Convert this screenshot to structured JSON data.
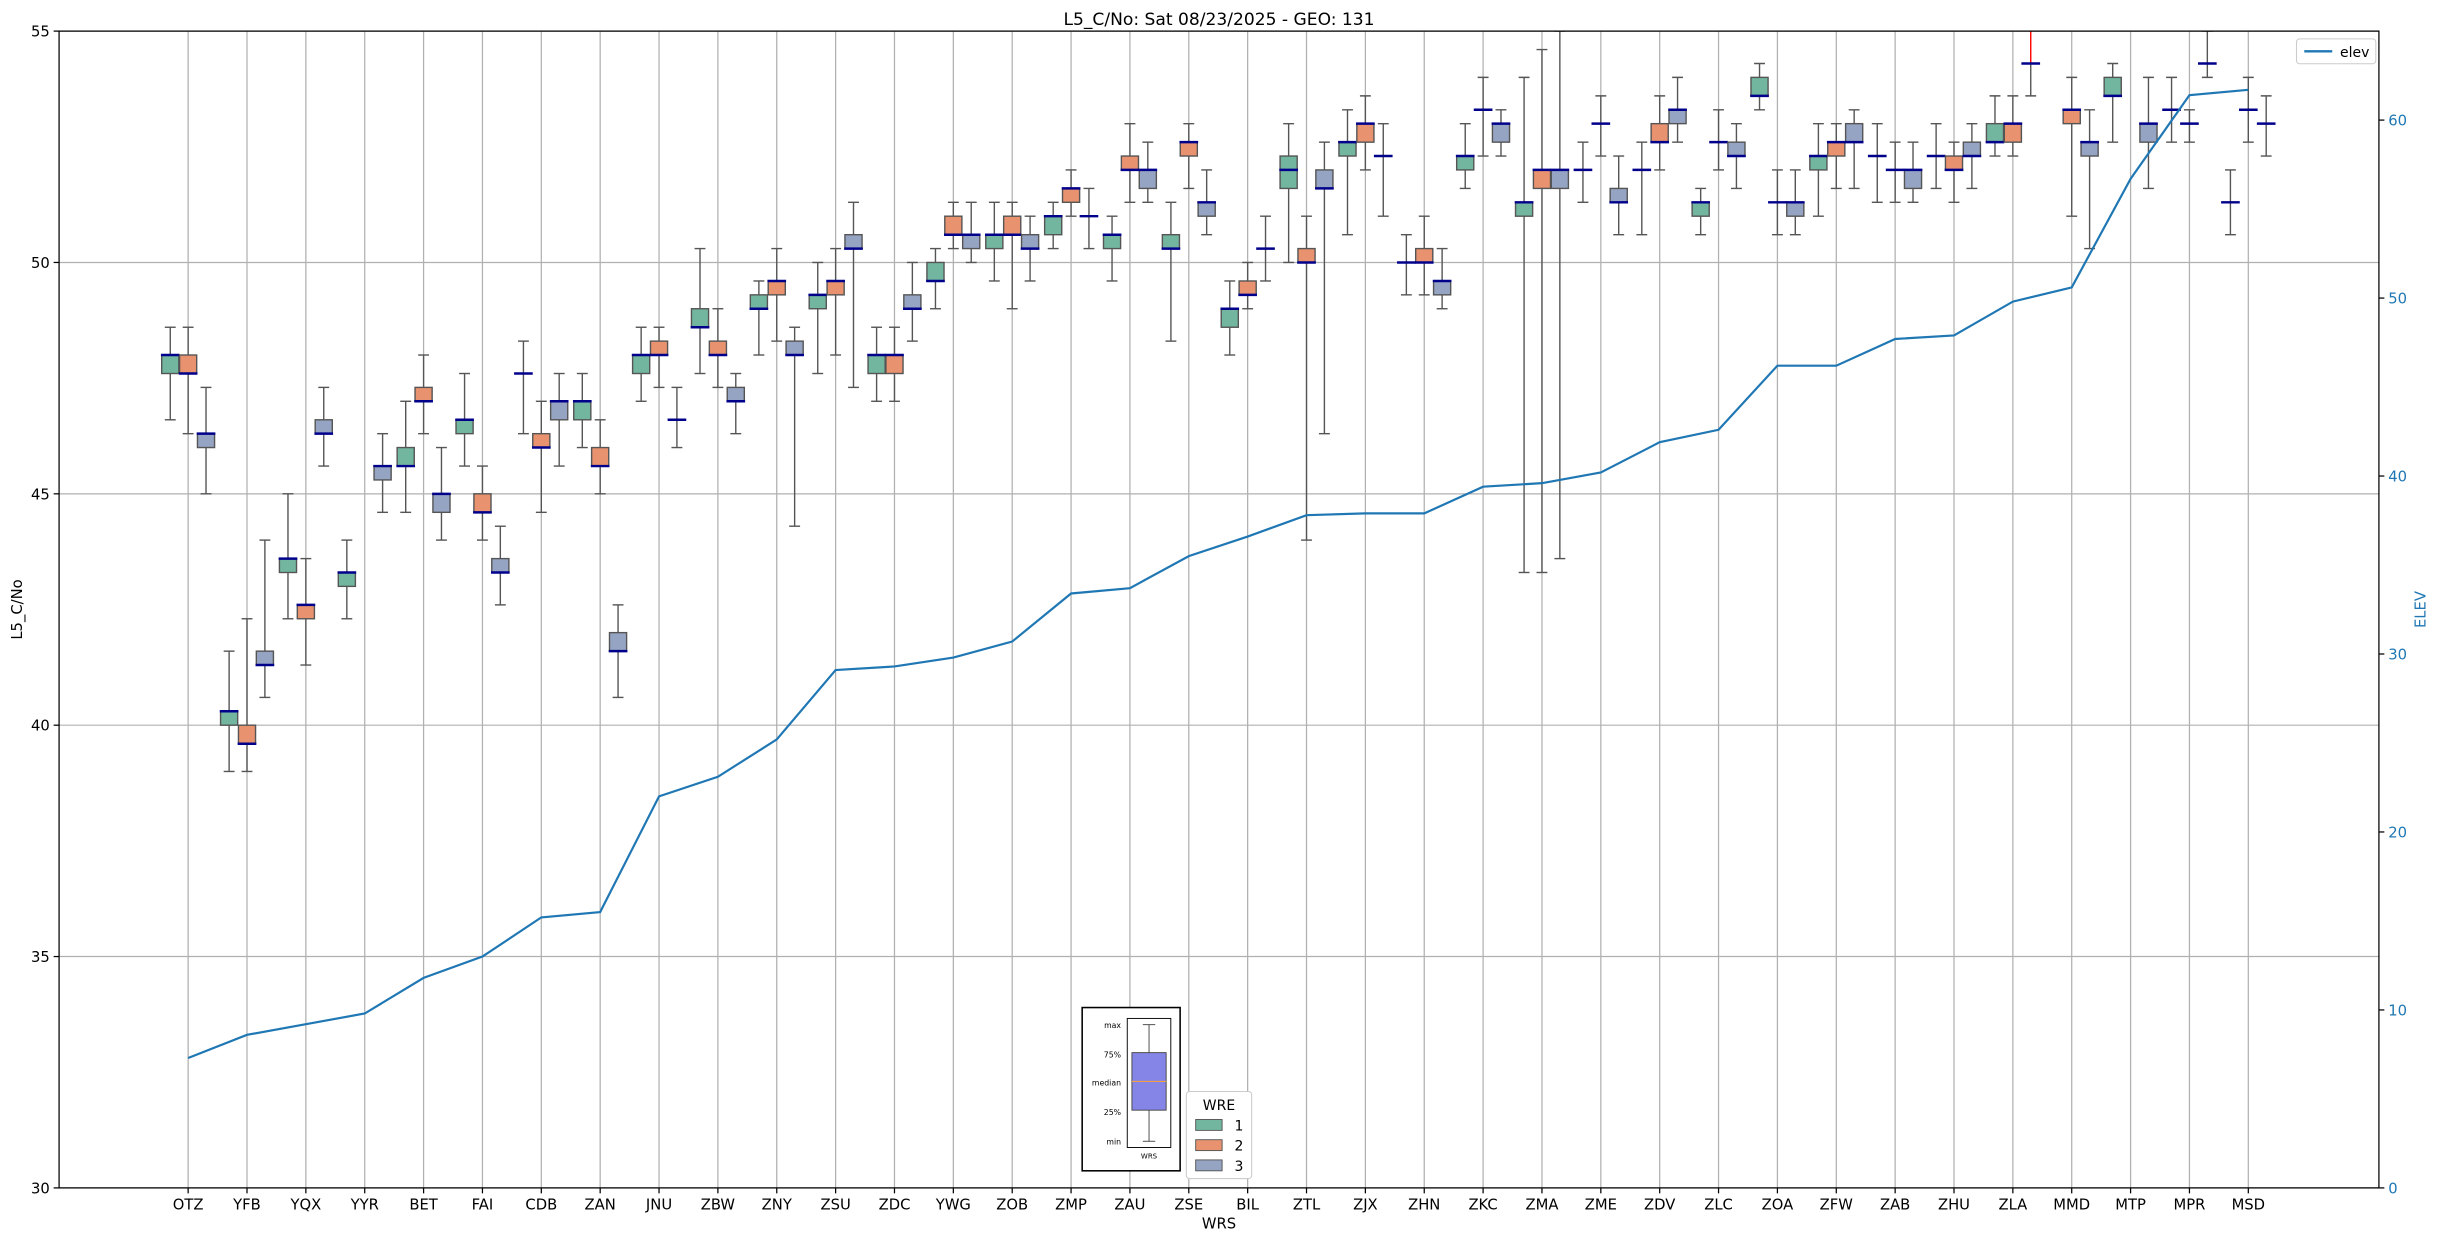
{
  "chart_data": {
    "type": "boxplot+line",
    "title": "L5_C/No: Sat 08/23/2025 - GEO: 131",
    "xlabel": "WRS",
    "ylabel": "L5_C/No",
    "ylabel_right": "ELEV",
    "ylim": [
      30,
      55
    ],
    "ylim_right": [
      0,
      65
    ],
    "yticks": [
      30,
      35,
      40,
      45,
      50,
      55
    ],
    "yticks_right": [
      0,
      10,
      20,
      30,
      40,
      50,
      60
    ],
    "grid": true,
    "categories": [
      "OTZ",
      "YFB",
      "YQX",
      "YYR",
      "BET",
      "FAI",
      "CDB",
      "ZAN",
      "JNU",
      "ZBW",
      "ZNY",
      "ZSU",
      "ZDC",
      "YWG",
      "ZOB",
      "ZMP",
      "ZAU",
      "ZSE",
      "BIL",
      "ZTL",
      "ZJX",
      "ZHN",
      "ZKC",
      "ZMA",
      "ZME",
      "ZDV",
      "ZLC",
      "ZOA",
      "ZFW",
      "ZAB",
      "ZHU",
      "ZLA",
      "MMD",
      "MTP",
      "MPR",
      "MSD"
    ],
    "box_stat_order": [
      "min",
      "q1",
      "median",
      "q3",
      "max"
    ],
    "series": [
      {
        "name": "1",
        "color": "#72b6a0",
        "boxes": [
          [
            46.6,
            47.6,
            48.0,
            48.0,
            48.6
          ],
          [
            39.0,
            40.0,
            40.3,
            40.3,
            41.6
          ],
          [
            42.3,
            43.3,
            43.6,
            43.6,
            45.0
          ],
          [
            42.3,
            43.0,
            43.3,
            43.3,
            44.0
          ],
          [
            44.6,
            45.6,
            45.6,
            46.0,
            47.0
          ],
          [
            45.6,
            46.3,
            46.6,
            46.6,
            47.6
          ],
          [
            46.3,
            47.6,
            47.6,
            47.6,
            48.3
          ],
          [
            46.0,
            46.6,
            47.0,
            47.0,
            47.6
          ],
          [
            47.0,
            47.6,
            48.0,
            48.0,
            48.6
          ],
          [
            47.6,
            48.6,
            48.6,
            49.0,
            50.3
          ],
          [
            48.0,
            49.0,
            49.0,
            49.3,
            49.6
          ],
          [
            47.6,
            49.0,
            49.3,
            49.3,
            50.0
          ],
          [
            47.0,
            47.6,
            48.0,
            48.0,
            48.6
          ],
          [
            49.0,
            49.6,
            49.6,
            50.0,
            50.3
          ],
          [
            49.6,
            50.3,
            50.6,
            50.6,
            51.3
          ],
          [
            50.3,
            50.6,
            51.0,
            51.0,
            51.3
          ],
          [
            49.6,
            50.3,
            50.6,
            50.6,
            51.0
          ],
          [
            48.3,
            50.3,
            50.3,
            50.6,
            51.3
          ],
          [
            48.0,
            48.6,
            49.0,
            49.0,
            49.6
          ],
          [
            50.0,
            51.6,
            52.0,
            52.3,
            53.0
          ],
          [
            50.6,
            52.3,
            52.6,
            52.6,
            53.3
          ],
          [
            49.3,
            50.0,
            50.0,
            50.0,
            50.6
          ],
          [
            51.6,
            52.0,
            52.3,
            52.3,
            53.0
          ],
          [
            43.3,
            51.0,
            51.3,
            51.3,
            54.0
          ],
          [
            51.3,
            52.0,
            52.0,
            52.0,
            52.6
          ],
          [
            50.6,
            52.0,
            52.0,
            52.0,
            52.6
          ],
          [
            50.6,
            51.0,
            51.3,
            51.3,
            51.6
          ],
          [
            53.3,
            53.6,
            53.6,
            54.0,
            54.3
          ],
          [
            51.0,
            52.0,
            52.3,
            52.3,
            53.0
          ],
          [
            51.3,
            52.3,
            52.3,
            52.3,
            53.0
          ],
          [
            51.6,
            52.3,
            52.3,
            52.3,
            53.0
          ],
          [
            52.3,
            52.6,
            52.6,
            53.0,
            53.6
          ],
          null,
          [
            52.6,
            53.6,
            53.6,
            54.0,
            54.3
          ],
          [
            52.6,
            53.3,
            53.3,
            53.3,
            54.0
          ],
          [
            50.6,
            51.3,
            51.3,
            51.3,
            52.0
          ]
        ]
      },
      {
        "name": "2",
        "color": "#e9926f",
        "boxes": [
          [
            46.3,
            47.6,
            47.6,
            48.0,
            48.6
          ],
          [
            39.0,
            39.6,
            39.6,
            40.0,
            42.3
          ],
          [
            41.3,
            42.3,
            42.6,
            42.6,
            43.6
          ],
          null,
          [
            46.3,
            47.0,
            47.0,
            47.3,
            48.0
          ],
          [
            44.0,
            44.6,
            44.6,
            45.0,
            45.6
          ],
          [
            44.6,
            46.0,
            46.0,
            46.3,
            47.0
          ],
          [
            45.0,
            45.6,
            45.6,
            46.0,
            46.6
          ],
          [
            47.3,
            48.0,
            48.0,
            48.3,
            48.6
          ],
          [
            47.3,
            48.0,
            48.0,
            48.3,
            49.0
          ],
          [
            48.3,
            49.3,
            49.6,
            49.6,
            50.3
          ],
          [
            48.0,
            49.3,
            49.6,
            49.6,
            50.3
          ],
          [
            47.0,
            47.6,
            48.0,
            48.0,
            48.6
          ],
          [
            50.3,
            50.6,
            50.6,
            51.0,
            51.3
          ],
          [
            49.0,
            50.6,
            50.6,
            51.0,
            51.3
          ],
          [
            51.0,
            51.3,
            51.6,
            51.6,
            52.0
          ],
          [
            51.3,
            52.0,
            52.0,
            52.3,
            53.0
          ],
          [
            51.6,
            52.3,
            52.6,
            52.6,
            53.0
          ],
          [
            49.0,
            49.3,
            49.3,
            49.6,
            50.0
          ],
          [
            44.0,
            50.0,
            50.0,
            50.3,
            51.0
          ],
          [
            52.0,
            52.6,
            53.0,
            53.0,
            53.6
          ],
          [
            49.3,
            50.0,
            50.0,
            50.3,
            51.0
          ],
          [
            52.3,
            53.3,
            53.3,
            53.3,
            54.0
          ],
          [
            43.3,
            51.6,
            52.0,
            52.0,
            54.6
          ],
          [
            52.3,
            53.0,
            53.0,
            53.0,
            53.6
          ],
          [
            52.0,
            52.6,
            52.6,
            53.0,
            53.6
          ],
          [
            52.0,
            52.6,
            52.6,
            52.6,
            53.3
          ],
          [
            50.6,
            51.3,
            51.3,
            51.3,
            52.0
          ],
          [
            51.6,
            52.3,
            52.6,
            52.6,
            53.0
          ],
          [
            51.3,
            52.0,
            52.0,
            52.0,
            52.6
          ],
          [
            51.3,
            52.0,
            52.0,
            52.3,
            52.6
          ],
          [
            52.3,
            52.6,
            53.0,
            53.0,
            53.6
          ],
          [
            51.0,
            53.0,
            53.3,
            53.3,
            54.0
          ],
          null,
          [
            52.6,
            53.0,
            53.0,
            53.0,
            53.3
          ],
          [
            52.6,
            53.3,
            53.3,
            53.3,
            54.0
          ]
        ]
      },
      {
        "name": "3",
        "color": "#96a4c3",
        "boxes": [
          [
            45.0,
            46.0,
            46.3,
            46.3,
            47.3
          ],
          [
            40.6,
            41.3,
            41.3,
            41.6,
            44.0
          ],
          [
            45.6,
            46.3,
            46.3,
            46.6,
            47.3
          ],
          [
            44.6,
            45.3,
            45.6,
            45.6,
            46.3
          ],
          [
            44.0,
            44.6,
            45.0,
            45.0,
            46.0
          ],
          [
            42.6,
            43.3,
            43.3,
            43.6,
            44.3
          ],
          [
            45.6,
            46.6,
            47.0,
            47.0,
            47.6
          ],
          [
            40.6,
            41.6,
            41.6,
            42.0,
            42.6
          ],
          [
            46.0,
            46.6,
            46.6,
            46.6,
            47.3
          ],
          [
            46.3,
            47.0,
            47.0,
            47.3,
            47.6
          ],
          [
            44.3,
            48.0,
            48.0,
            48.3,
            48.6
          ],
          [
            47.3,
            50.3,
            50.3,
            50.6,
            51.3
          ],
          [
            48.3,
            49.0,
            49.0,
            49.3,
            50.0
          ],
          [
            50.0,
            50.3,
            50.6,
            50.6,
            51.3
          ],
          [
            49.6,
            50.3,
            50.3,
            50.6,
            51.0
          ],
          [
            50.3,
            51.0,
            51.0,
            51.0,
            51.6
          ],
          [
            51.3,
            51.6,
            52.0,
            52.0,
            52.6
          ],
          [
            50.6,
            51.0,
            51.3,
            51.3,
            52.0
          ],
          [
            49.6,
            50.3,
            50.3,
            50.3,
            51.0
          ],
          [
            46.3,
            51.6,
            51.6,
            52.0,
            52.6
          ],
          [
            51.0,
            52.3,
            52.3,
            52.3,
            53.0
          ],
          [
            49.0,
            49.3,
            49.6,
            49.6,
            50.3
          ],
          [
            52.3,
            52.6,
            53.0,
            53.0,
            53.3
          ],
          [
            43.6,
            51.6,
            52.0,
            52.0,
            55.0
          ],
          [
            50.6,
            51.3,
            51.3,
            51.6,
            52.3
          ],
          [
            52.6,
            53.0,
            53.3,
            53.3,
            54.0
          ],
          [
            51.6,
            52.3,
            52.3,
            52.6,
            53.0
          ],
          [
            50.6,
            51.0,
            51.3,
            51.3,
            52.0
          ],
          [
            51.6,
            52.6,
            52.6,
            53.0,
            53.3
          ],
          [
            51.3,
            51.6,
            52.0,
            52.0,
            52.6
          ],
          [
            51.6,
            52.3,
            52.3,
            52.6,
            53.0
          ],
          [
            53.6,
            54.3,
            54.3,
            54.3,
            56.0
          ],
          [
            50.3,
            52.3,
            52.6,
            52.6,
            53.3
          ],
          [
            51.6,
            52.6,
            53.0,
            53.0,
            54.0
          ],
          [
            54.0,
            54.3,
            54.3,
            54.3,
            55.0
          ],
          [
            52.3,
            53.0,
            53.0,
            53.0,
            53.6
          ]
        ]
      }
    ],
    "median_color": "#00008b",
    "elev": {
      "name": "elev",
      "color": "#1f77b4",
      "values": [
        7.3,
        8.6,
        9.2,
        9.8,
        11.8,
        13.0,
        15.2,
        15.5,
        22.0,
        23.1,
        25.2,
        29.1,
        29.3,
        29.8,
        30.7,
        33.4,
        33.7,
        35.5,
        36.6,
        37.8,
        37.9,
        37.9,
        39.4,
        39.6,
        40.2,
        41.9,
        42.6,
        46.2,
        46.2,
        47.7,
        47.9,
        49.8,
        50.6,
        56.7,
        61.4,
        61.7
      ]
    },
    "legend_wre": {
      "title": "WRE",
      "entries": [
        "1",
        "2",
        "3"
      ],
      "placement": "bottom-center"
    },
    "legend_elev": {
      "label": "elev",
      "placement": "top-right"
    },
    "key_inset": {
      "labels": [
        "max",
        "75%",
        "median",
        "25%",
        "min"
      ],
      "xlabel": "WRS"
    }
  }
}
